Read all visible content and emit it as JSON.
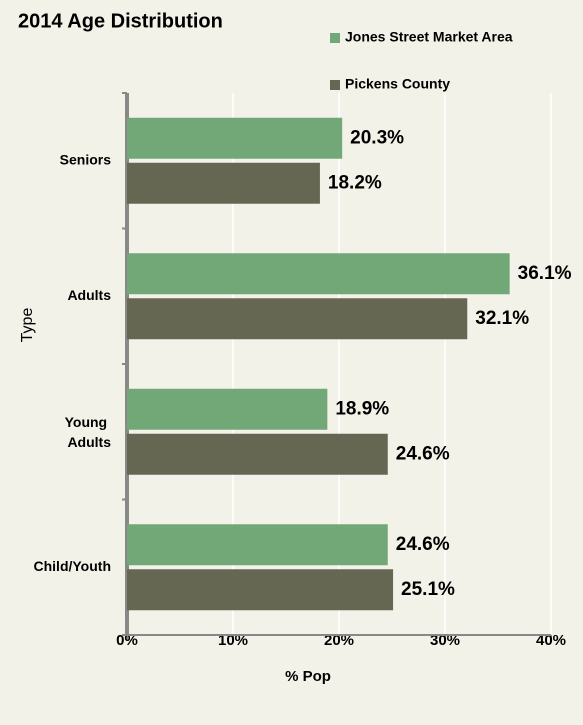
{
  "chart_data": {
    "type": "hbar",
    "title": "2014 Age Distribution",
    "categories": [
      "Seniors",
      "Adults",
      "Young Adults",
      "Child/Youth"
    ],
    "series": [
      {
        "name": "Jones Street Market Area",
        "color": "#72a878",
        "values": [
          20.3,
          36.1,
          18.9,
          24.6
        ],
        "value_labels": [
          "20.3%",
          "36.1%",
          "18.9%",
          "24.6%"
        ]
      },
      {
        "name": "Pickens County",
        "color": "#666752",
        "values": [
          18.2,
          32.1,
          24.6,
          25.1
        ],
        "value_labels": [
          "18.2%",
          "32.1%",
          "24.6%",
          "25.1%"
        ]
      }
    ],
    "xlim": [
      0,
      40
    ],
    "xticks": [
      {
        "value": 0,
        "label": "0%"
      },
      {
        "value": 10,
        "label": "10%"
      },
      {
        "value": 20,
        "label": "20%"
      },
      {
        "value": 30,
        "label": "30%"
      },
      {
        "value": 40,
        "label": "40%"
      }
    ],
    "xlabel": "% Pop",
    "ylabel": "Type",
    "grid": true,
    "legend": "top-right"
  }
}
